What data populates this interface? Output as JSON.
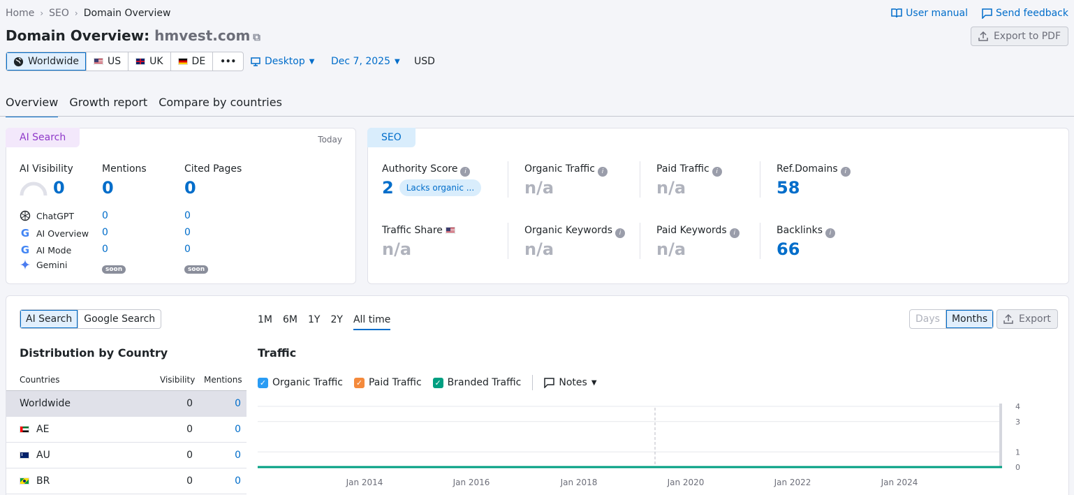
{
  "breadcrumb": {
    "items": [
      "Home",
      "SEO",
      "Domain Overview"
    ]
  },
  "header": {
    "title_prefix": "Domain Overview:",
    "domain": "hmvest.com",
    "user_manual": "User manual",
    "send_feedback": "Send feedback",
    "export_pdf": "Export to PDF"
  },
  "databases": {
    "items": [
      {
        "label": "Worldwide",
        "icon": "globe-icon"
      },
      {
        "label": "US",
        "flag": "us"
      },
      {
        "label": "UK",
        "flag": "uk"
      },
      {
        "label": "DE",
        "flag": "de"
      }
    ],
    "more": "•••"
  },
  "filters": {
    "device": "Desktop",
    "date": "Dec 7, 2025",
    "currency": "USD"
  },
  "tabs": [
    "Overview",
    "Growth report",
    "Compare by countries"
  ],
  "ai_card": {
    "pill": "AI Search",
    "date": "Today",
    "metrics": [
      {
        "label": "AI Visibility",
        "value": "0"
      },
      {
        "label": "Mentions",
        "value": "0"
      },
      {
        "label": "Cited Pages",
        "value": "0"
      }
    ],
    "sources": [
      {
        "name": "ChatGPT",
        "mentions": "0",
        "cited": "0"
      },
      {
        "name": "AI Overview",
        "mentions": "0",
        "cited": "0"
      },
      {
        "name": "AI Mode",
        "mentions": "0",
        "cited": "0"
      },
      {
        "name": "Gemini",
        "mentions": "soon",
        "cited": "soon"
      }
    ]
  },
  "seo_card": {
    "pill": "SEO",
    "authority": {
      "label": "Authority Score",
      "value": "2",
      "badge": "Lacks organic ..."
    },
    "organic_traffic": {
      "label": "Organic Traffic",
      "value": "n/a"
    },
    "paid_traffic": {
      "label": "Paid Traffic",
      "value": "n/a"
    },
    "ref_domains": {
      "label": "Ref.Domains",
      "value": "58"
    },
    "traffic_share": {
      "label": "Traffic Share",
      "value": "n/a"
    },
    "organic_keywords": {
      "label": "Organic Keywords",
      "value": "n/a"
    },
    "paid_keywords": {
      "label": "Paid Keywords",
      "value": "n/a"
    },
    "backlinks": {
      "label": "Backlinks",
      "value": "66"
    }
  },
  "lower": {
    "search_toggle": [
      "AI Search",
      "Google Search"
    ],
    "ranges": [
      "1M",
      "6M",
      "1Y",
      "2Y",
      "All time"
    ],
    "granularity": [
      "Days",
      "Months"
    ],
    "export": "Export",
    "dist_title": "Distribution by Country",
    "table_headers": [
      "Countries",
      "Visibility",
      "Mentions"
    ],
    "rows": [
      {
        "country": "Worldwide",
        "visibility": "0",
        "mentions": "0"
      },
      {
        "country": "AE",
        "flag": "ae",
        "visibility": "0",
        "mentions": "0"
      },
      {
        "country": "AU",
        "flag": "au",
        "visibility": "0",
        "mentions": "0"
      },
      {
        "country": "BR",
        "flag": "br",
        "visibility": "0",
        "mentions": "0"
      }
    ],
    "chart_title": "Traffic",
    "legend": [
      {
        "label": "Organic Traffic",
        "color": "#2a9cf4"
      },
      {
        "label": "Paid Traffic",
        "color": "#f48a3c"
      },
      {
        "label": "Branded Traffic",
        "color": "#009f81"
      }
    ],
    "notes": "Notes"
  },
  "chart_data": {
    "type": "line",
    "title": "Traffic",
    "x_ticks": [
      "Jan 2014",
      "Jan 2016",
      "Jan 2018",
      "Jan 2020",
      "Jan 2022",
      "Jan 2024"
    ],
    "y_ticks": [
      "4",
      "3",
      "1",
      "0"
    ],
    "ylim": [
      0,
      4
    ],
    "series": [
      {
        "name": "Branded Traffic",
        "values": [
          0,
          0,
          0,
          0,
          0,
          0
        ]
      }
    ],
    "grid": true
  }
}
